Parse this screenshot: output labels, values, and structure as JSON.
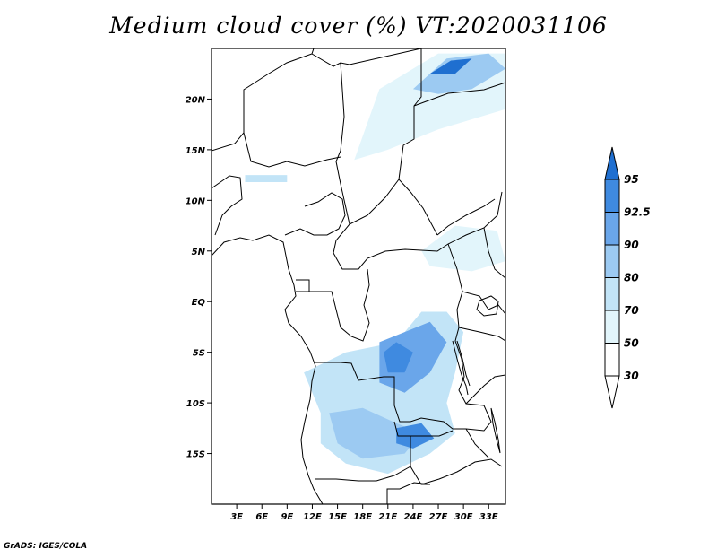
{
  "title": "Medium cloud cover (%) VT:2020031106",
  "credit": "GrADS: IGES/COLA",
  "map": {
    "lon_range": [
      0,
      35
    ],
    "lat_range": [
      -20,
      25
    ],
    "lon_ticks": [
      {
        "value": 3,
        "label": "3E"
      },
      {
        "value": 6,
        "label": "6E"
      },
      {
        "value": 9,
        "label": "9E"
      },
      {
        "value": 12,
        "label": "12E"
      },
      {
        "value": 15,
        "label": "15E"
      },
      {
        "value": 18,
        "label": "18E"
      },
      {
        "value": 21,
        "label": "21E"
      },
      {
        "value": 24,
        "label": "24E"
      },
      {
        "value": 27,
        "label": "27E"
      },
      {
        "value": 30,
        "label": "30E"
      },
      {
        "value": 33,
        "label": "33E"
      }
    ],
    "lat_ticks": [
      {
        "value": 20,
        "label": "20N"
      },
      {
        "value": 15,
        "label": "15N"
      },
      {
        "value": 10,
        "label": "10N"
      },
      {
        "value": 5,
        "label": "5N"
      },
      {
        "value": 0,
        "label": "EQ"
      },
      {
        "value": -5,
        "label": "5S"
      },
      {
        "value": -10,
        "label": "10S"
      },
      {
        "value": -15,
        "label": "15S"
      }
    ]
  },
  "colorbar": {
    "levels": [
      "95",
      "92.5",
      "90",
      "80",
      "70",
      "50",
      "30"
    ],
    "colors": [
      "#1f6fd0",
      "#3f8ae0",
      "#6aa6ea",
      "#9ccaf2",
      "#c2e4f7",
      "#e2f5fb",
      "#ffffff"
    ]
  },
  "cloud_regions": [
    {
      "level": "50",
      "points": [
        [
          20,
          21
        ],
        [
          27,
          24.5
        ],
        [
          35,
          24.5
        ],
        [
          35,
          19
        ],
        [
          27,
          17
        ],
        [
          21,
          15
        ],
        [
          17,
          14
        ]
      ]
    },
    {
      "level": "80",
      "points": [
        [
          24,
          21
        ],
        [
          28,
          24
        ],
        [
          33,
          24.5
        ],
        [
          35,
          23
        ],
        [
          31,
          21
        ],
        [
          27,
          20.5
        ]
      ]
    },
    {
      "level": "95",
      "points": [
        [
          26,
          22.5
        ],
        [
          28.5,
          23.8
        ],
        [
          31,
          24
        ],
        [
          29,
          22.5
        ]
      ]
    },
    {
      "level": "30",
      "points": [
        [
          1,
          12
        ],
        [
          10,
          13
        ],
        [
          12,
          11
        ],
        [
          10,
          9
        ],
        [
          5,
          9.5
        ],
        [
          0.5,
          10
        ]
      ]
    },
    {
      "level": "70",
      "points": [
        [
          4,
          12.5
        ],
        [
          9,
          12.5
        ],
        [
          9,
          11.8
        ],
        [
          4,
          11.8
        ]
      ]
    },
    {
      "level": "50",
      "points": [
        [
          25,
          5
        ],
        [
          29,
          7.5
        ],
        [
          34,
          7
        ],
        [
          35,
          4
        ],
        [
          31,
          3
        ],
        [
          26,
          3.5
        ]
      ]
    },
    {
      "level": "30",
      "points": [
        [
          5,
          -1
        ],
        [
          12,
          0
        ],
        [
          18,
          -2
        ],
        [
          22,
          3
        ],
        [
          25,
          3
        ],
        [
          29,
          0
        ],
        [
          32,
          -3
        ],
        [
          34,
          -5
        ],
        [
          33,
          -8
        ],
        [
          29,
          -10
        ],
        [
          31,
          -14
        ],
        [
          28,
          -17
        ],
        [
          20,
          -18
        ],
        [
          15,
          -16
        ],
        [
          10,
          -14
        ],
        [
          12,
          -10
        ],
        [
          11,
          -7
        ],
        [
          8,
          -5
        ],
        [
          6,
          -3
        ]
      ]
    },
    {
      "level": "70",
      "points": [
        [
          11,
          -7
        ],
        [
          16,
          -5
        ],
        [
          22,
          -4
        ],
        [
          25,
          -1
        ],
        [
          28,
          -1
        ],
        [
          30,
          -3
        ],
        [
          29,
          -7
        ],
        [
          28,
          -10
        ],
        [
          29,
          -13
        ],
        [
          26,
          -15
        ],
        [
          21,
          -17
        ],
        [
          16,
          -16
        ],
        [
          13,
          -14
        ],
        [
          13,
          -11
        ]
      ]
    },
    {
      "level": "90",
      "points": [
        [
          20,
          -4
        ],
        [
          23,
          -3
        ],
        [
          26,
          -2
        ],
        [
          28,
          -4
        ],
        [
          26,
          -7
        ],
        [
          23,
          -9
        ],
        [
          20,
          -8
        ]
      ]
    },
    {
      "level": "92.5",
      "points": [
        [
          20.5,
          -5
        ],
        [
          22,
          -4
        ],
        [
          24,
          -5
        ],
        [
          23,
          -7
        ],
        [
          21,
          -7
        ]
      ]
    },
    {
      "level": "80",
      "points": [
        [
          14,
          -11
        ],
        [
          18,
          -10.5
        ],
        [
          22,
          -12
        ],
        [
          25,
          -13
        ],
        [
          23,
          -15
        ],
        [
          18,
          -15.5
        ],
        [
          15,
          -14
        ]
      ]
    },
    {
      "level": "92.5",
      "points": [
        [
          22,
          -12.5
        ],
        [
          25,
          -12
        ],
        [
          26.5,
          -13.5
        ],
        [
          24,
          -14.5
        ],
        [
          22,
          -14
        ]
      ]
    }
  ]
}
